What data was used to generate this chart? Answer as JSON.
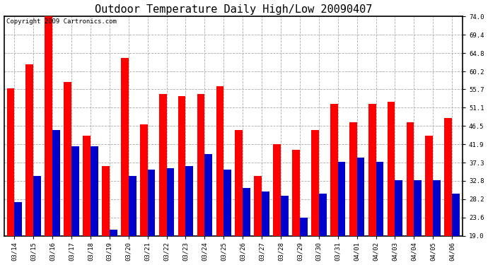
{
  "title": "Outdoor Temperature Daily High/Low 20090407",
  "copyright": "Copyright 2009 Cartronics.com",
  "dates": [
    "03/14",
    "03/15",
    "03/16",
    "03/17",
    "03/18",
    "03/19",
    "03/20",
    "03/21",
    "03/22",
    "03/23",
    "03/24",
    "03/25",
    "03/26",
    "03/27",
    "03/28",
    "03/29",
    "03/30",
    "03/31",
    "04/01",
    "04/02",
    "04/03",
    "04/04",
    "04/05",
    "04/06"
  ],
  "highs": [
    56.0,
    62.0,
    74.0,
    57.5,
    44.0,
    36.5,
    63.5,
    47.0,
    54.5,
    54.0,
    54.5,
    56.5,
    45.5,
    34.0,
    42.0,
    40.5,
    45.5,
    52.0,
    47.5,
    52.0,
    52.5,
    47.5,
    44.0,
    48.5
  ],
  "lows": [
    27.5,
    34.0,
    45.5,
    41.5,
    41.5,
    20.5,
    34.0,
    35.5,
    36.0,
    36.5,
    39.5,
    35.5,
    31.0,
    30.0,
    29.0,
    23.5,
    29.5,
    37.5,
    38.5,
    37.5,
    33.0,
    33.0,
    33.0,
    29.5
  ],
  "high_color": "#ff0000",
  "low_color": "#0000cc",
  "bg_color": "#ffffff",
  "plot_bg_color": "#ffffff",
  "grid_color": "#aaaaaa",
  "yticks": [
    19.0,
    23.6,
    28.2,
    32.8,
    37.3,
    41.9,
    46.5,
    51.1,
    55.7,
    60.2,
    64.8,
    69.4,
    74.0
  ],
  "ymin": 19.0,
  "ymax": 74.0,
  "bar_width": 0.4,
  "title_fontsize": 11,
  "tick_fontsize": 6.5,
  "copyright_fontsize": 6.5
}
